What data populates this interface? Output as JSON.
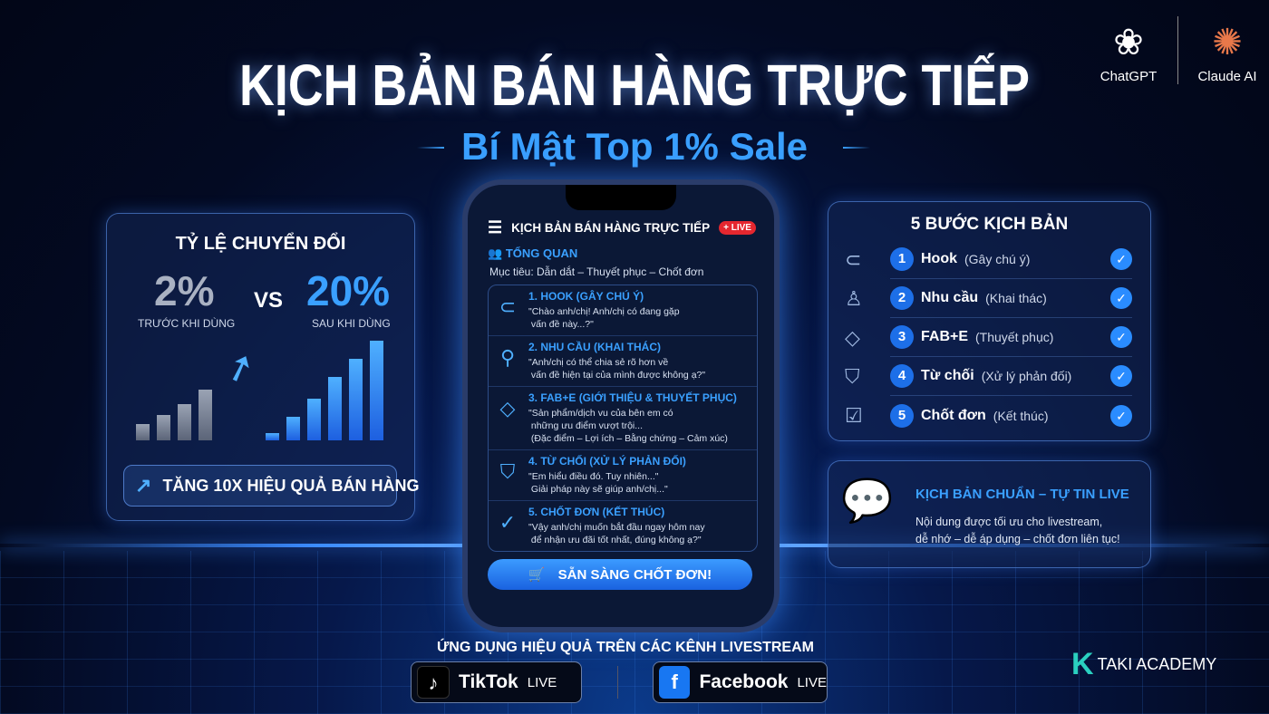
{
  "header": {
    "title": "KỊCH BẢN BÁN HÀNG TRỰC TIẾP",
    "subtitle": "Bí Mật Top 1% Sale",
    "logos": [
      {
        "name": "ChatGPT",
        "icon": "openai-knot-icon"
      },
      {
        "name": "Claude AI",
        "icon": "claude-burst-icon"
      }
    ]
  },
  "conversion": {
    "title": "TỶ LỆ CHUYỂN ĐỔI",
    "before_value": "2%",
    "before_label": "TRƯỚC KHI DÙNG",
    "vs": "VS",
    "after_value": "20%",
    "after_label": "SAU KHI DÙNG",
    "boost_label": "TĂNG 10X HIỆU QUẢ BÁN HÀNG",
    "colors": {
      "before": "#8a93a6",
      "after": "#3aa0ff"
    }
  },
  "phone": {
    "title": "KỊCH BẢN BÁN HÀNG TRỰC TIẾP",
    "live_badge": "+ LIVE",
    "overview": "TỔNG QUAN",
    "goal": "Mục tiêu: Dẫn dắt – Thuyết phục – Chốt đơn",
    "steps": [
      {
        "title": "1. HOOK (GÂY CHÚ Ý)",
        "text": "\"Chào anh/chị! Anh/chị có đang gặp\n vấn đề này...?\"",
        "icon": "magnet-icon"
      },
      {
        "title": "2. NHU CẦU (KHAI THÁC)",
        "text": "\"Anh/chị có thể chia sẻ rõ hơn về\n vấn đề hiện tại của mình được không ạ?\"",
        "icon": "user-search-icon"
      },
      {
        "title": "3. FAB+E (GIỚI THIỆU & THUYẾT PHỤC)",
        "text": "\"Sản phẩm/dịch vu của bên em có\n những ưu điểm vượt trội...\n (Đặc điểm – Lợi ích – Bằng chứng – Cảm xúc)",
        "icon": "diamond-icon"
      },
      {
        "title": "4. TỪ CHỐI (XỬ LÝ PHẢN ĐỐI)",
        "text": "\"Em hiểu điều đó. Tuy nhiên...\"\n Giải pháp này sẽ giúp anh/chị...\"",
        "icon": "shield-icon"
      },
      {
        "title": "5. CHỐT ĐƠN (KẾT THÚC)",
        "text": "\"Vậy anh/chị muốn bắt đầu ngay hôm nay\n để nhận ưu đãi tốt nhất, đúng không ạ?\"",
        "icon": "check-circle-icon"
      }
    ],
    "cta": "SẴN SÀNG CHỐT ĐƠN!"
  },
  "steps_panel": {
    "title": "5 BƯỚC KỊCH BẢN",
    "items": [
      {
        "num": "1",
        "name": "Hook",
        "desc": "(Gây chú ý)"
      },
      {
        "num": "2",
        "name": "Nhu cầu",
        "desc": "(Khai thác)"
      },
      {
        "num": "3",
        "name": "FAB+E",
        "desc": "(Thuyết phục)"
      },
      {
        "num": "4",
        "name": "Từ chối",
        "desc": "(Xử lý phản đối)"
      },
      {
        "num": "5",
        "name": "Chốt đơn",
        "desc": "(Kết thúc)"
      }
    ]
  },
  "promo": {
    "title": "KỊCH BẢN CHUẨN – TỰ TIN LIVE",
    "text": "Nội dung được tối ưu cho livestream,\ndễ nhớ – dễ áp dụng – chốt đơn liên tục!"
  },
  "footer": {
    "apply": "ỨNG DỤNG HIỆU QUẢ TRÊN CÁC KÊNH LIVESTREAM",
    "channels": [
      {
        "name": "TikTok",
        "suffix": "LIVE"
      },
      {
        "name": "Facebook",
        "suffix": "LIVE"
      }
    ],
    "brand": "TAKI ACADEMY"
  }
}
